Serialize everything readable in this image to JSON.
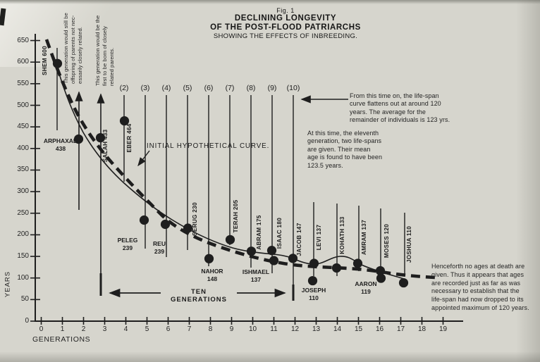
{
  "figure": {
    "fig_label": "Fig. 1",
    "title_line1": "DECLINING LONGEVITY",
    "title_line2": "OF THE POST-FLOOD PATRIARCHS",
    "subtitle": "SHOWING THE EFFECTS OF INBREEDING."
  },
  "axes": {
    "x_label": "GENERATIONS",
    "y_label": "YEARS",
    "x_ticks": [
      0,
      1,
      2,
      3,
      4,
      5,
      6,
      7,
      8,
      9,
      10,
      11,
      12,
      13,
      14,
      15,
      16,
      17,
      18,
      19
    ],
    "y_ticks": [
      0,
      50,
      100,
      150,
      200,
      250,
      300,
      350,
      400,
      450,
      500,
      550,
      600,
      650
    ]
  },
  "chart_data": {
    "type": "scatter",
    "title": "DECLINING LONGEVITY OF THE POST-FLOOD PATRIARCHS",
    "xlabel": "GENERATIONS",
    "ylabel": "YEARS",
    "xlim": [
      0,
      19
    ],
    "ylim": [
      0,
      650
    ],
    "points": [
      {
        "name": "SHEM",
        "generation": 1,
        "age": 600,
        "label_style": "rotated"
      },
      {
        "name": "ARPHAXAD",
        "generation": 2,
        "age": 438,
        "label_style": "stacked"
      },
      {
        "name": "SALAH",
        "generation": 3,
        "age": 433,
        "label_style": "rotated"
      },
      {
        "name": "EBER",
        "generation": 4,
        "age": 464,
        "label_style": "rotated"
      },
      {
        "name": "PELEG",
        "generation": 5,
        "age": 239,
        "label_style": "stacked"
      },
      {
        "name": "REU",
        "generation": 6,
        "age": 239,
        "label_style": "stacked"
      },
      {
        "name": "SERUG",
        "generation": 7,
        "age": 230,
        "label_style": "rotated"
      },
      {
        "name": "NAHOR",
        "generation": 8,
        "age": 148,
        "label_style": "stacked"
      },
      {
        "name": "TERAH",
        "generation": 9,
        "age": 205,
        "label_style": "rotated"
      },
      {
        "name": "ABRAM",
        "generation": 10,
        "age": 175,
        "label_style": "rotated"
      },
      {
        "name": "ISAAC",
        "generation": 11,
        "age": 180,
        "label_style": "rotated"
      },
      {
        "name": "ISHMAEL",
        "generation": 11,
        "age": 137,
        "label_style": "stacked"
      },
      {
        "name": "JACOB",
        "generation": 12,
        "age": 147,
        "label_style": "rotated"
      },
      {
        "name": "LEVI",
        "generation": 13,
        "age": 137,
        "label_style": "rotated"
      },
      {
        "name": "JOSEPH",
        "generation": 13,
        "age": 110,
        "label_style": "stacked"
      },
      {
        "name": "KOHATH",
        "generation": 14,
        "age": 133,
        "label_style": "rotated"
      },
      {
        "name": "AMRAM",
        "generation": 15,
        "age": 137,
        "label_style": "rotated"
      },
      {
        "name": "MOSES",
        "generation": 16,
        "age": 120,
        "label_style": "rotated"
      },
      {
        "name": "AARON",
        "generation": 16,
        "age": 119,
        "label_style": "stacked"
      },
      {
        "name": "JOSHUA",
        "generation": 17,
        "age": 110,
        "label_style": "rotated"
      }
    ],
    "curves": [
      {
        "name": "initial-hypothetical-curve",
        "style": "solid"
      },
      {
        "name": "actual-lifespan-trend",
        "style": "dashed"
      }
    ],
    "generation_markers": [
      "(2)",
      "(3)",
      "(4)",
      "(5)",
      "(6)",
      "(7)",
      "(8)",
      "(9)",
      "(10)"
    ],
    "span_label": "TEN GENERATIONS"
  },
  "annotations": {
    "initial_curve_label": "INITIAL HYPOTHETICAL CURVE.",
    "offspring_note": "This generation would still be\noffspring of parents not nec-\nessarily closely related.",
    "closely_related_note": "This generation would be the\nfirst to be born of closely\nrelated parents.",
    "flatten_note": "From this time on, the life-span\ncurve flattens out at around 120\nyears. The average for the\nremainder of individuals is 123 yrs.",
    "eleventh_note": "At this time, the eleventh\ngeneration, two life-spans\nare given. Their mean\nage is found to have been\n123.5 years.",
    "henceforth_note": "Henceforth no ages at death are\ngiven. Thus it appears that ages\nare recorded just as far as was\nnecessary to establish that the\nlife-span had now dropped to its\nappointed maximum of 120 years.",
    "ten_generations": "TEN GENERATIONS"
  },
  "ink": "#1e1e1e"
}
